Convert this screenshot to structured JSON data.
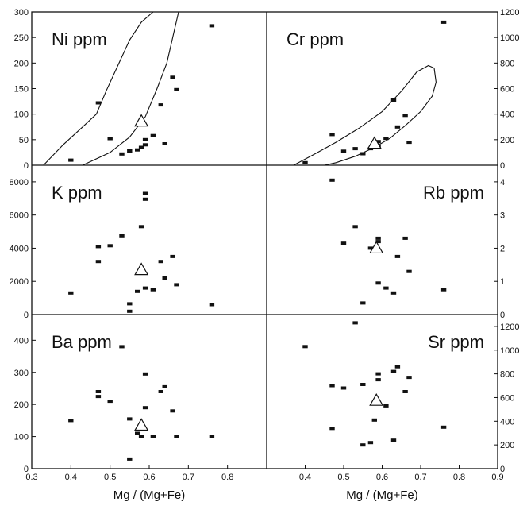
{
  "chart_data": [
    {
      "id": "ni",
      "type": "scatter",
      "title": "Ni ppm",
      "title_align": "left",
      "row": 0,
      "col": 0,
      "xlim": [
        0.3,
        0.9
      ],
      "ylim": [
        0,
        300
      ],
      "y_axis_side": "left",
      "y_ticks": [
        0,
        50,
        100,
        150,
        200,
        250,
        300
      ],
      "y_tick_labels": [
        "0",
        "50",
        "100",
        "150",
        "200",
        "250",
        "300"
      ],
      "points": [
        [
          0.4,
          10
        ],
        [
          0.47,
          122
        ],
        [
          0.5,
          52
        ],
        [
          0.53,
          22
        ],
        [
          0.55,
          28
        ],
        [
          0.57,
          30
        ],
        [
          0.58,
          35
        ],
        [
          0.59,
          40
        ],
        [
          0.59,
          50
        ],
        [
          0.61,
          58
        ],
        [
          0.63,
          118
        ],
        [
          0.64,
          42
        ],
        [
          0.66,
          172
        ],
        [
          0.67,
          148
        ],
        [
          0.76,
          273
        ]
      ],
      "triangle": [
        0.58,
        86
      ],
      "fields": [
        [
          [
            0.33,
            0
          ],
          [
            0.38,
            40
          ],
          [
            0.43,
            75
          ],
          [
            0.465,
            100
          ],
          [
            0.49,
            145
          ],
          [
            0.52,
            195
          ],
          [
            0.55,
            245
          ],
          [
            0.58,
            280
          ],
          [
            0.61,
            300
          ]
        ],
        [
          [
            0.43,
            0
          ],
          [
            0.5,
            25
          ],
          [
            0.55,
            55
          ],
          [
            0.59,
            95
          ],
          [
            0.62,
            150
          ],
          [
            0.645,
            200
          ],
          [
            0.66,
            250
          ],
          [
            0.675,
            300
          ]
        ]
      ]
    },
    {
      "id": "cr",
      "type": "scatter",
      "title": "Cr ppm",
      "title_align": "left",
      "row": 0,
      "col": 1,
      "xlim": [
        0.3,
        0.9
      ],
      "ylim": [
        0,
        1200
      ],
      "y_axis_side": "right",
      "y_ticks": [
        0,
        200,
        400,
        600,
        800,
        1000,
        1200
      ],
      "y_tick_labels": [
        "0",
        "200",
        "400",
        "600",
        "800",
        "1000",
        "1200"
      ],
      "points": [
        [
          0.4,
          20
        ],
        [
          0.47,
          240
        ],
        [
          0.5,
          110
        ],
        [
          0.53,
          130
        ],
        [
          0.55,
          90
        ],
        [
          0.57,
          130
        ],
        [
          0.58,
          140
        ],
        [
          0.59,
          150
        ],
        [
          0.59,
          185
        ],
        [
          0.61,
          210
        ],
        [
          0.63,
          510
        ],
        [
          0.64,
          300
        ],
        [
          0.66,
          390
        ],
        [
          0.67,
          180
        ],
        [
          0.76,
          1120
        ]
      ],
      "triangle": [
        0.58,
        170
      ],
      "fields": [
        [
          [
            0.37,
            0
          ],
          [
            0.42,
            80
          ],
          [
            0.48,
            180
          ],
          [
            0.54,
            290
          ],
          [
            0.6,
            420
          ],
          [
            0.65,
            580
          ],
          [
            0.69,
            730
          ],
          [
            0.72,
            780
          ],
          [
            0.735,
            760
          ],
          [
            0.74,
            650
          ],
          [
            0.73,
            540
          ],
          [
            0.7,
            420
          ],
          [
            0.66,
            310
          ],
          [
            0.62,
            210
          ],
          [
            0.58,
            140
          ],
          [
            0.53,
            70
          ],
          [
            0.48,
            20
          ],
          [
            0.45,
            0
          ]
        ]
      ]
    },
    {
      "id": "k",
      "type": "scatter",
      "title": "K ppm",
      "title_align": "left",
      "row": 1,
      "col": 0,
      "xlim": [
        0.3,
        0.9
      ],
      "ylim": [
        0,
        9000
      ],
      "y_axis_side": "left",
      "y_ticks": [
        0,
        2000,
        4000,
        6000,
        8000
      ],
      "y_tick_labels": [
        "0",
        "2000",
        "4000",
        "6000",
        "8000"
      ],
      "points": [
        [
          0.4,
          1300
        ],
        [
          0.47,
          4100
        ],
        [
          0.47,
          3200
        ],
        [
          0.5,
          4150
        ],
        [
          0.53,
          4750
        ],
        [
          0.55,
          200
        ],
        [
          0.55,
          650
        ],
        [
          0.57,
          1400
        ],
        [
          0.58,
          5300
        ],
        [
          0.59,
          7300
        ],
        [
          0.59,
          6950
        ],
        [
          0.59,
          1600
        ],
        [
          0.61,
          1500
        ],
        [
          0.63,
          3200
        ],
        [
          0.64,
          2200
        ],
        [
          0.66,
          3500
        ],
        [
          0.67,
          1800
        ],
        [
          0.76,
          600
        ]
      ],
      "triangle": [
        0.58,
        2700
      ]
    },
    {
      "id": "rb",
      "type": "scatter",
      "title": "Rb ppm",
      "title_align": "right",
      "row": 1,
      "col": 1,
      "xlim": [
        0.3,
        0.9
      ],
      "ylim": [
        0,
        4.5
      ],
      "y_axis_side": "right",
      "y_ticks": [
        0,
        1,
        2,
        3,
        4
      ],
      "y_tick_labels": [
        "0",
        "1",
        "2",
        "3",
        "4"
      ],
      "points": [
        [
          0.47,
          4.05
        ],
        [
          0.5,
          2.15
        ],
        [
          0.53,
          2.65
        ],
        [
          0.55,
          0.35
        ],
        [
          0.57,
          2.0
        ],
        [
          0.59,
          2.3
        ],
        [
          0.59,
          2.2
        ],
        [
          0.59,
          0.95
        ],
        [
          0.61,
          0.8
        ],
        [
          0.63,
          0.65
        ],
        [
          0.64,
          1.75
        ],
        [
          0.66,
          2.3
        ],
        [
          0.67,
          1.3
        ],
        [
          0.76,
          0.75
        ]
      ],
      "triangle": [
        0.585,
        2.0
      ]
    },
    {
      "id": "ba",
      "type": "scatter",
      "title": "Ba ppm",
      "title_align": "left",
      "row": 2,
      "col": 0,
      "xlim": [
        0.3,
        0.9
      ],
      "ylim": [
        0,
        480
      ],
      "y_axis_side": "left",
      "y_ticks": [
        0,
        100,
        200,
        300,
        400
      ],
      "y_tick_labels": [
        "0",
        "100",
        "200",
        "300",
        "400"
      ],
      "x_ticks": [
        0.3,
        0.4,
        0.5,
        0.6,
        0.7,
        0.8
      ],
      "x_tick_labels": [
        "0.3",
        "0.4",
        "0.5",
        "0.6",
        "0.7",
        "0.8"
      ],
      "xlabel": "Mg / (Mg+Fe)",
      "points": [
        [
          0.4,
          150
        ],
        [
          0.47,
          240
        ],
        [
          0.47,
          225
        ],
        [
          0.5,
          210
        ],
        [
          0.53,
          380
        ],
        [
          0.55,
          155
        ],
        [
          0.55,
          30
        ],
        [
          0.57,
          110
        ],
        [
          0.58,
          100
        ],
        [
          0.59,
          295
        ],
        [
          0.59,
          190
        ],
        [
          0.61,
          100
        ],
        [
          0.63,
          240
        ],
        [
          0.64,
          255
        ],
        [
          0.66,
          180
        ],
        [
          0.67,
          100
        ],
        [
          0.76,
          100
        ]
      ],
      "triangle": [
        0.58,
        135
      ]
    },
    {
      "id": "sr",
      "type": "scatter",
      "title": "Sr ppm",
      "title_align": "right",
      "row": 2,
      "col": 1,
      "xlim": [
        0.3,
        0.9
      ],
      "ylim": [
        0,
        1300
      ],
      "y_axis_side": "right",
      "y_ticks": [
        0,
        200,
        400,
        600,
        800,
        1000,
        1200
      ],
      "y_tick_labels": [
        "0",
        "200",
        "400",
        "600",
        "800",
        "1000",
        "1200"
      ],
      "x_ticks": [
        0.4,
        0.5,
        0.6,
        0.7,
        0.8,
        0.9
      ],
      "x_tick_labels": [
        "0.4",
        "0.5",
        "0.6",
        "0.7",
        "0.8",
        "0.9"
      ],
      "xlabel": "Mg / (Mg+Fe)",
      "points": [
        [
          0.4,
          1030
        ],
        [
          0.47,
          700
        ],
        [
          0.47,
          340
        ],
        [
          0.5,
          680
        ],
        [
          0.53,
          1230
        ],
        [
          0.55,
          710
        ],
        [
          0.55,
          200
        ],
        [
          0.57,
          220
        ],
        [
          0.58,
          410
        ],
        [
          0.59,
          800
        ],
        [
          0.59,
          750
        ],
        [
          0.61,
          530
        ],
        [
          0.63,
          820
        ],
        [
          0.64,
          860
        ],
        [
          0.66,
          650
        ],
        [
          0.67,
          770
        ],
        [
          0.76,
          350
        ],
        [
          0.63,
          240
        ]
      ],
      "triangle": [
        0.585,
        575
      ]
    }
  ]
}
